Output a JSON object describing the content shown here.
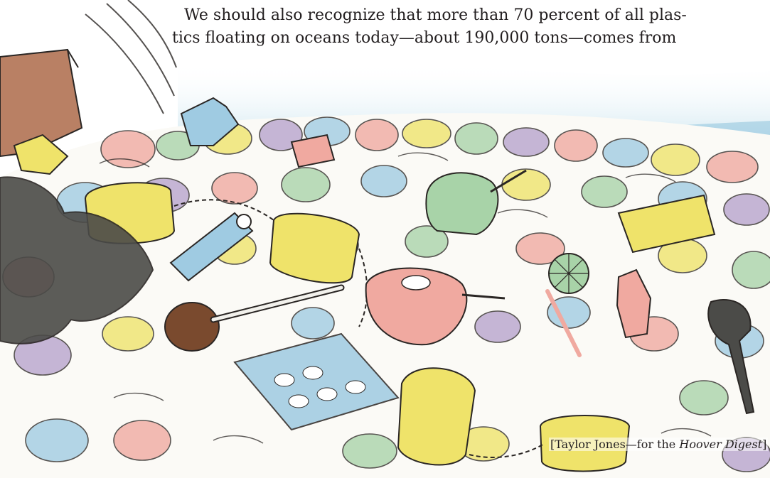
{
  "article": {
    "lines": [
      "We should also recognize that more than 70 percent of all plas-",
      "tics floating on oceans today—about 190,000 tons—comes from"
    ]
  },
  "illustration": {
    "subject": "pile of floating plastic debris",
    "palette": {
      "sky": "#b8dbe9",
      "yellow": "#efe36a",
      "pink": "#f0a9a0",
      "blue": "#9fcbe2",
      "green": "#a8d3a8",
      "purple": "#b7a2cc",
      "dark": "#4b4b48",
      "brown": "#b98064",
      "ink": "#2a2624"
    }
  },
  "credit": {
    "open": "[",
    "author": "Taylor Jones",
    "dash": "—for the ",
    "publication": "Hoover Digest",
    "close": "]"
  }
}
